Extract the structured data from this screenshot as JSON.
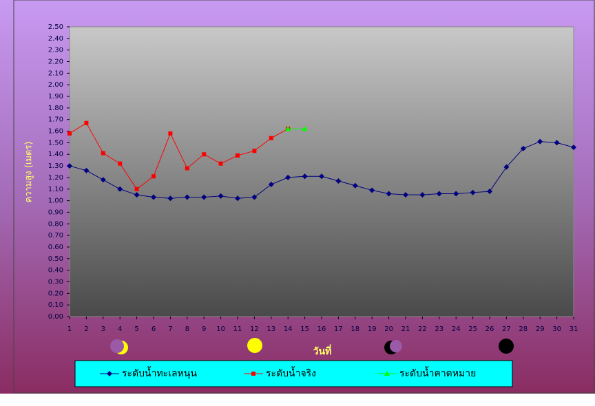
{
  "chart_data": {
    "type": "line",
    "x_label": "วันที่",
    "y_label": "ความสูง (เมตร)",
    "x": [
      1,
      2,
      3,
      4,
      5,
      6,
      7,
      8,
      9,
      10,
      11,
      12,
      13,
      14,
      15,
      16,
      17,
      18,
      19,
      20,
      21,
      22,
      23,
      24,
      25,
      26,
      27,
      28,
      29,
      30,
      31
    ],
    "xlim": [
      1,
      31
    ],
    "xticks": [
      1,
      2,
      3,
      4,
      5,
      6,
      7,
      8,
      9,
      10,
      11,
      12,
      13,
      14,
      15,
      16,
      17,
      18,
      19,
      20,
      21,
      22,
      23,
      24,
      25,
      26,
      27,
      28,
      29,
      30,
      31
    ],
    "ylim": [
      0,
      2.5
    ],
    "yticks": [
      {
        "value": 0,
        "label": "0.00"
      },
      {
        "value": 0.1,
        "label": "0.10"
      },
      {
        "value": 0.2,
        "label": "0.20"
      },
      {
        "value": 0.3,
        "label": "0.30"
      },
      {
        "value": 0.4,
        "label": "0.40"
      },
      {
        "value": 0.5,
        "label": "0.50"
      },
      {
        "value": 0.6,
        "label": "0.60"
      },
      {
        "value": 0.7,
        "label": "0.70"
      },
      {
        "value": 0.8,
        "label": "0.80"
      },
      {
        "value": 0.9,
        "label": "0.90"
      },
      {
        "value": 1,
        "label": "1.00"
      },
      {
        "value": 1.1,
        "label": "1.10"
      },
      {
        "value": 1.2,
        "label": "1.20"
      },
      {
        "value": 1.3,
        "label": "1.30"
      },
      {
        "value": 1.4,
        "label": "1.40"
      },
      {
        "value": 1.5,
        "label": "1.50"
      },
      {
        "value": 1.6,
        "label": "1.60"
      },
      {
        "value": 1.7,
        "label": "1.70"
      },
      {
        "value": 1.8,
        "label": "1.80"
      },
      {
        "value": 1.9,
        "label": "1.90"
      },
      {
        "value": 2,
        "label": "2.00"
      },
      {
        "value": 2.1,
        "label": "2.10"
      },
      {
        "value": 2.2,
        "label": "2.20"
      },
      {
        "value": 2.3,
        "label": "2.30"
      },
      {
        "value": 2.4,
        "label": "2.40"
      },
      {
        "value": 2.5,
        "label": "2.50"
      }
    ],
    "legend": "bottom",
    "series": [
      {
        "name": "ระดับน้ำทะเลหนุน",
        "color": "#000080",
        "marker": "diamond",
        "values": [
          1.3,
          1.26,
          1.18,
          1.1,
          1.05,
          1.03,
          1.02,
          1.03,
          1.03,
          1.04,
          1.02,
          1.03,
          1.14,
          1.2,
          1.21,
          1.21,
          1.17,
          1.13,
          1.09,
          1.06,
          1.05,
          1.05,
          1.06,
          1.06,
          1.07,
          1.08,
          1.29,
          1.45,
          1.51,
          1.5,
          1.46
        ]
      },
      {
        "name": "ระดับน้ำจริง",
        "color": "#ff0000",
        "marker": "square",
        "values": [
          1.58,
          1.67,
          1.41,
          1.32,
          1.1,
          1.21,
          1.58,
          1.28,
          1.4,
          1.32,
          1.39,
          1.43,
          1.54,
          1.62,
          null,
          null,
          null,
          null,
          null,
          null,
          null,
          null,
          null,
          null,
          null,
          null,
          null,
          null,
          null,
          null,
          null
        ]
      },
      {
        "name": "ระดับน้ำคาดหมาย",
        "color": "#00ff00",
        "marker": "triangle",
        "values": [
          null,
          null,
          null,
          null,
          null,
          null,
          null,
          null,
          null,
          null,
          null,
          null,
          null,
          1.62,
          1.62,
          null,
          null,
          null,
          null,
          null,
          null,
          null,
          null,
          null,
          null,
          null,
          null,
          null,
          null,
          null,
          null
        ]
      }
    ]
  }
}
